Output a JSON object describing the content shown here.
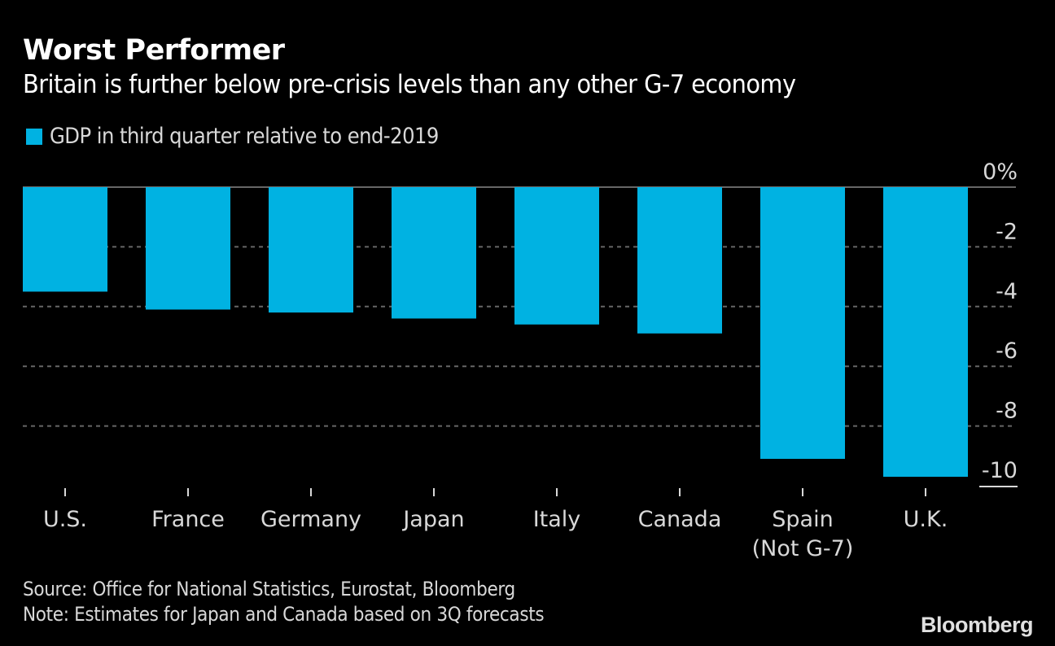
{
  "header": {
    "title": "Worst Performer",
    "subtitle": "Britain is further below pre-crisis levels than any other G-7 economy"
  },
  "legend": {
    "label": "GDP in third quarter relative to end-2019",
    "color": "#00b2e2"
  },
  "footer": {
    "source": "Source: Office for National Statistics, Eurostat, Bloomberg",
    "note": "Note: Estimates for Japan and Canada based on 3Q forecasts",
    "logo": "Bloomberg"
  },
  "colors": {
    "background": "#000000",
    "bar": "#00b2e2",
    "zero_line": "#666666",
    "grid": "#666666",
    "text": "#d8d8d8"
  },
  "chart_data": {
    "type": "bar",
    "title": "Worst Performer",
    "subtitle": "Britain is further below pre-crisis levels than any other G-7 economy",
    "xlabel": "",
    "ylabel": "",
    "categories": [
      "U.S.",
      "France",
      "Germany",
      "Japan",
      "Italy",
      "Canada",
      "Spain\n(Not G-7)",
      "U.K."
    ],
    "series": [
      {
        "name": "GDP in third quarter relative to end-2019",
        "values": [
          -3.5,
          -4.1,
          -4.2,
          -4.4,
          -4.6,
          -4.9,
          -9.1,
          -9.7
        ]
      }
    ],
    "ylim": [
      -10,
      0
    ],
    "yticks": [
      0,
      -2,
      -4,
      -6,
      -8,
      -10
    ],
    "ytick_labels": [
      "0%",
      "-2",
      "-4",
      "-6",
      "-8",
      "-10"
    ],
    "y_axis_side": "right",
    "grid": true,
    "grid_style": "dashed",
    "legend_position": "top-left"
  }
}
